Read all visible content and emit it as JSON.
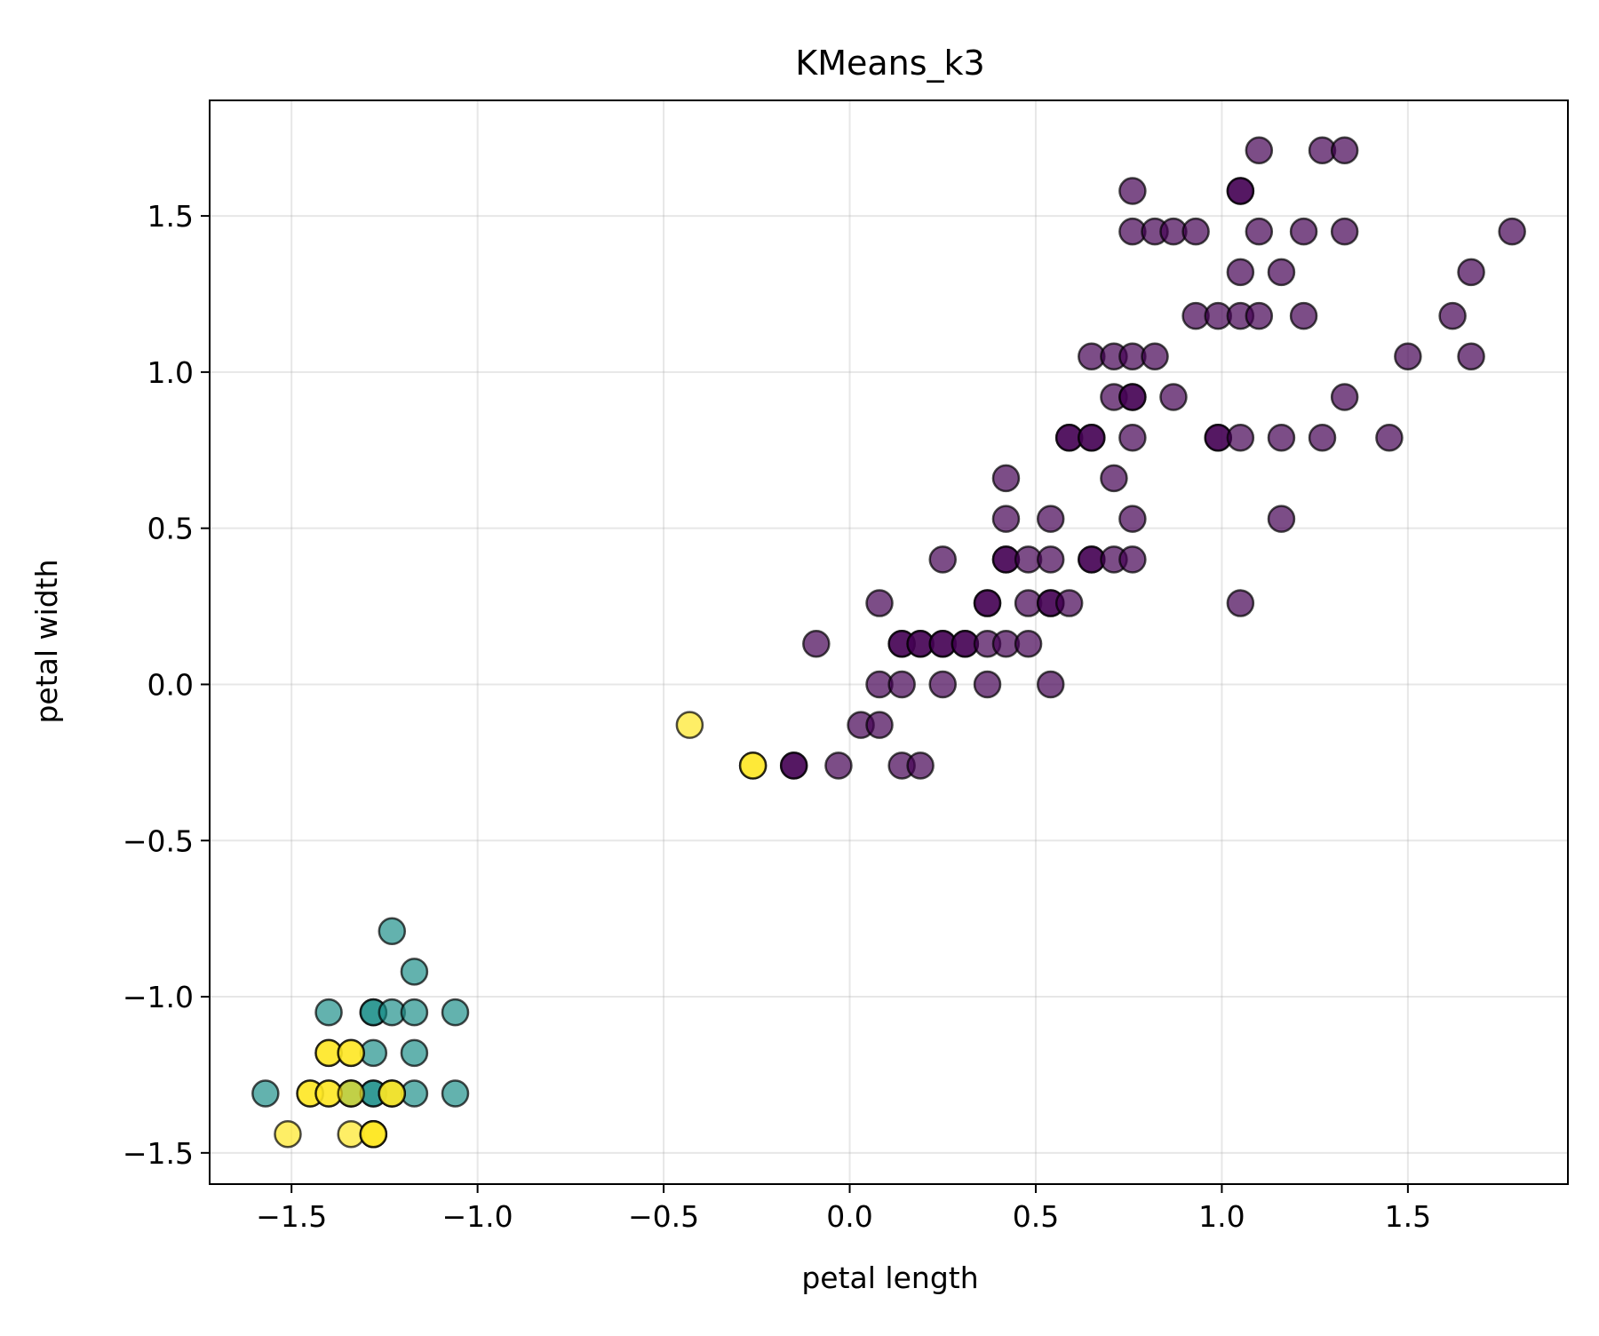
{
  "chart_data": {
    "type": "scatter",
    "title": "KMeans_k3",
    "xlabel": "petal length",
    "ylabel": "petal width",
    "xlim": [
      -1.72,
      1.93
    ],
    "ylim": [
      -1.6,
      1.87
    ],
    "grid": true,
    "xticks": [
      -1.5,
      -1.0,
      -0.5,
      0.0,
      0.5,
      1.0,
      1.5
    ],
    "yticks": [
      -1.5,
      -1.0,
      -0.5,
      0.0,
      0.5,
      1.0,
      1.5
    ],
    "xtick_labels": [
      "−1.5",
      "−1.0",
      "−0.5",
      "0.0",
      "0.5",
      "1.0",
      "1.5"
    ],
    "ytick_labels": [
      "−1.5",
      "−1.0",
      "−0.5",
      "0.0",
      "0.5",
      "1.0",
      "1.5"
    ],
    "colors": {
      "cluster_0": "#440154",
      "cluster_1": "#21918c",
      "cluster_2": "#fde725"
    },
    "series": [
      {
        "color_key": "cluster_0",
        "points": [
          [
            1.1,
            1.71
          ],
          [
            1.27,
            1.71
          ],
          [
            1.33,
            1.71
          ],
          [
            0.76,
            1.58
          ],
          [
            1.05,
            1.58
          ],
          [
            1.05,
            1.58
          ],
          [
            0.76,
            1.45
          ],
          [
            0.82,
            1.45
          ],
          [
            0.87,
            1.45
          ],
          [
            0.93,
            1.45
          ],
          [
            1.1,
            1.45
          ],
          [
            1.22,
            1.45
          ],
          [
            1.33,
            1.45
          ],
          [
            1.78,
            1.45
          ],
          [
            1.05,
            1.32
          ],
          [
            1.16,
            1.32
          ],
          [
            1.67,
            1.32
          ],
          [
            0.93,
            1.18
          ],
          [
            0.99,
            1.18
          ],
          [
            1.05,
            1.18
          ],
          [
            1.1,
            1.18
          ],
          [
            1.22,
            1.18
          ],
          [
            1.62,
            1.18
          ],
          [
            0.65,
            1.05
          ],
          [
            0.71,
            1.05
          ],
          [
            0.76,
            1.05
          ],
          [
            0.82,
            1.05
          ],
          [
            1.5,
            1.05
          ],
          [
            1.67,
            1.05
          ],
          [
            0.71,
            0.92
          ],
          [
            0.76,
            0.92
          ],
          [
            0.76,
            0.92
          ],
          [
            0.87,
            0.92
          ],
          [
            1.33,
            0.92
          ],
          [
            0.59,
            0.79
          ],
          [
            0.59,
            0.79
          ],
          [
            0.65,
            0.79
          ],
          [
            0.65,
            0.79
          ],
          [
            0.76,
            0.79
          ],
          [
            0.99,
            0.79
          ],
          [
            0.99,
            0.79
          ],
          [
            1.05,
            0.79
          ],
          [
            1.16,
            0.79
          ],
          [
            1.27,
            0.79
          ],
          [
            1.45,
            0.79
          ],
          [
            0.42,
            0.66
          ],
          [
            0.71,
            0.66
          ],
          [
            0.42,
            0.53
          ],
          [
            0.54,
            0.53
          ],
          [
            0.76,
            0.53
          ],
          [
            1.16,
            0.53
          ],
          [
            0.25,
            0.4
          ],
          [
            0.42,
            0.4
          ],
          [
            0.42,
            0.4
          ],
          [
            0.48,
            0.4
          ],
          [
            0.54,
            0.4
          ],
          [
            0.65,
            0.4
          ],
          [
            0.65,
            0.4
          ],
          [
            0.71,
            0.4
          ],
          [
            0.76,
            0.4
          ],
          [
            0.08,
            0.26
          ],
          [
            0.37,
            0.26
          ],
          [
            0.37,
            0.26
          ],
          [
            0.48,
            0.26
          ],
          [
            0.54,
            0.26
          ],
          [
            0.54,
            0.26
          ],
          [
            0.59,
            0.26
          ],
          [
            1.05,
            0.26
          ],
          [
            -0.09,
            0.13
          ],
          [
            0.14,
            0.13
          ],
          [
            0.14,
            0.13
          ],
          [
            0.19,
            0.13
          ],
          [
            0.19,
            0.13
          ],
          [
            0.25,
            0.13
          ],
          [
            0.25,
            0.13
          ],
          [
            0.31,
            0.13
          ],
          [
            0.31,
            0.13
          ],
          [
            0.37,
            0.13
          ],
          [
            0.42,
            0.13
          ],
          [
            0.48,
            0.13
          ],
          [
            0.08,
            0.0
          ],
          [
            0.14,
            0.0
          ],
          [
            0.25,
            0.0
          ],
          [
            0.37,
            0.0
          ],
          [
            0.54,
            0.0
          ],
          [
            0.03,
            -0.13
          ],
          [
            0.08,
            -0.13
          ],
          [
            -0.15,
            -0.26
          ],
          [
            -0.15,
            -0.26
          ],
          [
            -0.03,
            -0.26
          ],
          [
            0.14,
            -0.26
          ],
          [
            0.19,
            -0.26
          ]
        ]
      },
      {
        "color_key": "cluster_1",
        "points": [
          [
            -1.23,
            -0.79
          ],
          [
            -1.17,
            -0.92
          ],
          [
            -1.4,
            -1.05
          ],
          [
            -1.28,
            -1.05
          ],
          [
            -1.28,
            -1.05
          ],
          [
            -1.23,
            -1.05
          ],
          [
            -1.17,
            -1.05
          ],
          [
            -1.06,
            -1.05
          ],
          [
            -1.28,
            -1.18
          ],
          [
            -1.17,
            -1.18
          ],
          [
            -1.57,
            -1.31
          ],
          [
            -1.34,
            -1.31
          ],
          [
            -1.34,
            -1.31
          ],
          [
            -1.28,
            -1.31
          ],
          [
            -1.28,
            -1.31
          ],
          [
            -1.23,
            -1.31
          ],
          [
            -1.17,
            -1.31
          ],
          [
            -1.06,
            -1.31
          ]
        ]
      },
      {
        "color_key": "cluster_2",
        "points": [
          [
            -0.43,
            -0.13
          ],
          [
            -0.26,
            -0.26
          ],
          [
            -0.26,
            -0.26
          ],
          [
            -1.4,
            -1.18
          ],
          [
            -1.4,
            -1.18
          ],
          [
            -1.34,
            -1.18
          ],
          [
            -1.34,
            -1.18
          ],
          [
            -1.45,
            -1.31
          ],
          [
            -1.45,
            -1.31
          ],
          [
            -1.4,
            -1.31
          ],
          [
            -1.4,
            -1.31
          ],
          [
            -1.34,
            -1.31
          ],
          [
            -1.23,
            -1.31
          ],
          [
            -1.23,
            -1.31
          ],
          [
            -1.51,
            -1.44
          ],
          [
            -1.34,
            -1.44
          ],
          [
            -1.28,
            -1.44
          ],
          [
            -1.28,
            -1.44
          ],
          [
            -1.28,
            -1.44
          ]
        ]
      }
    ]
  }
}
